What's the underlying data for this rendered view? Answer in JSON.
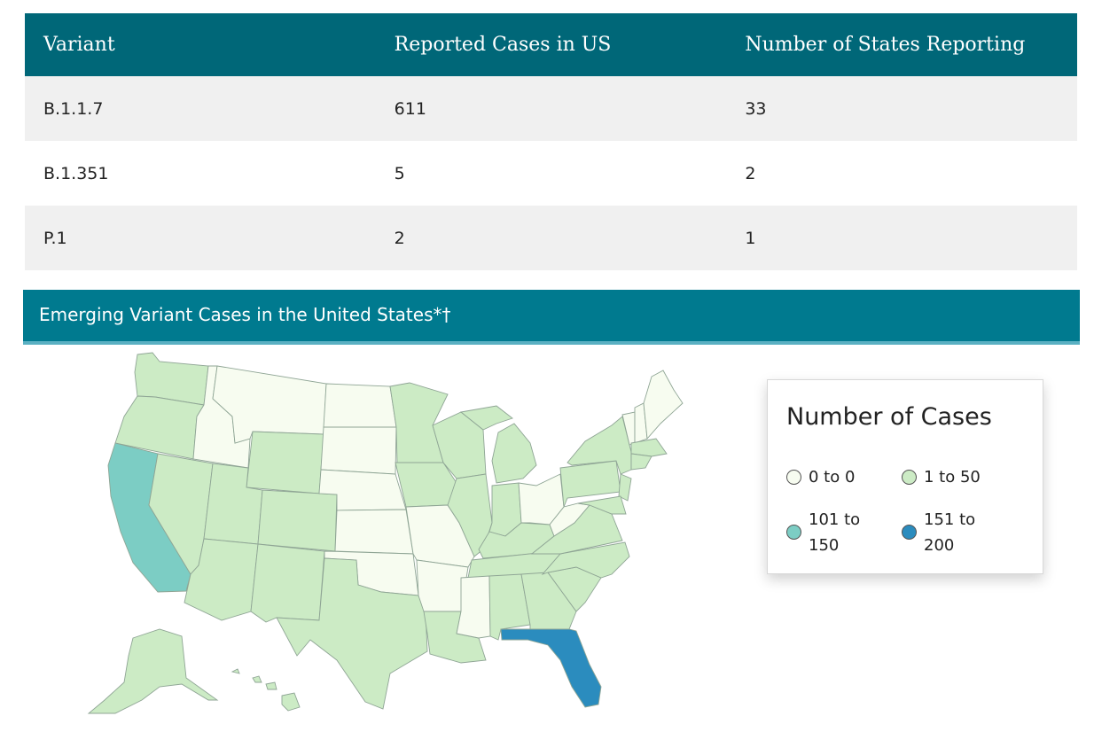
{
  "table": {
    "headers": [
      "Variant",
      "Reported Cases in US",
      "Number of States Reporting"
    ],
    "rows": [
      [
        "B.1.1.7",
        "611",
        "33"
      ],
      [
        "B.1.351",
        "5",
        "2"
      ],
      [
        "P.1",
        "2",
        "1"
      ]
    ]
  },
  "map_section": {
    "title": "Emerging Variant Cases in the United States*†"
  },
  "legend": {
    "title": "Number of Cases",
    "items": [
      {
        "label": "0 to 0",
        "color": "#f7fcf0"
      },
      {
        "label": "1 to 50",
        "color": "#ccebc5"
      },
      {
        "label": "101 to 150",
        "color": "#7ccdc4"
      },
      {
        "label": "151 to 200",
        "color": "#2b8cbe"
      }
    ]
  },
  "colors": {
    "table_header": "#006778",
    "section_header": "#007a8f",
    "bin_none": "#f7fcf0",
    "bin_1_50": "#ccebc5",
    "bin_101_150": "#7ccdc4",
    "bin_151_200": "#2b8cbe"
  }
}
